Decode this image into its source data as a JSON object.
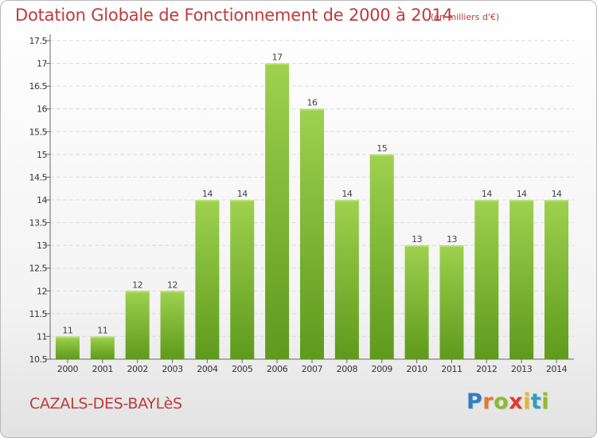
{
  "header": {
    "title": "Dotation Globale de Fonctionnement de 2000 à 2014",
    "subtitle": "(en milliers d'€)"
  },
  "footer": {
    "commune": "CAZALS-DES-BAYLèS",
    "logo_letters": [
      {
        "ch": "P",
        "color": "#2f7fc1"
      },
      {
        "ch": "r",
        "color": "#e8772e"
      },
      {
        "ch": "o",
        "color": "#8cbb2f"
      },
      {
        "ch": "x",
        "color": "#e03b2e"
      },
      {
        "ch": "i",
        "color": "#e8b52e"
      },
      {
        "ch": "t",
        "color": "#2f9fc1"
      },
      {
        "ch": "i",
        "color": "#8cbb2f"
      }
    ]
  },
  "colors": {
    "bar_light": "#9ed14f",
    "bar_dark": "#5e9a1c",
    "title": "#c03a3a"
  },
  "chart_data": {
    "type": "bar",
    "title": "Dotation Globale de Fonctionnement de 2000 à 2014",
    "subtitle": "(en milliers d'€)",
    "categories": [
      "2000",
      "2001",
      "2002",
      "2003",
      "2004",
      "2005",
      "2006",
      "2007",
      "2008",
      "2009",
      "2010",
      "2011",
      "2012",
      "2013",
      "2014"
    ],
    "plotted_values": [
      11.0,
      11.0,
      12.0,
      12.0,
      14.0,
      14.0,
      17.0,
      16.0,
      14.0,
      15.0,
      13.0,
      13.0,
      14.0,
      14.0,
      14.0
    ],
    "value_labels": [
      "11",
      "11",
      "12",
      "12",
      "14",
      "14",
      "17",
      "16",
      "14",
      "15",
      "13",
      "13",
      "14",
      "14",
      "14"
    ],
    "ylim": [
      10.5,
      17.5
    ],
    "yticks": [
      10.5,
      11,
      11.5,
      12,
      12.5,
      13,
      13.5,
      14,
      14.5,
      15,
      15.5,
      16,
      16.5,
      17,
      17.5
    ],
    "ytick_labels": [
      "10.5",
      "11",
      "11.5",
      "12",
      "12.5",
      "13",
      "13.5",
      "14",
      "14.5",
      "15",
      "15.5",
      "16",
      "16.5",
      "17",
      "17.5"
    ],
    "grid": true,
    "legend": "none"
  }
}
